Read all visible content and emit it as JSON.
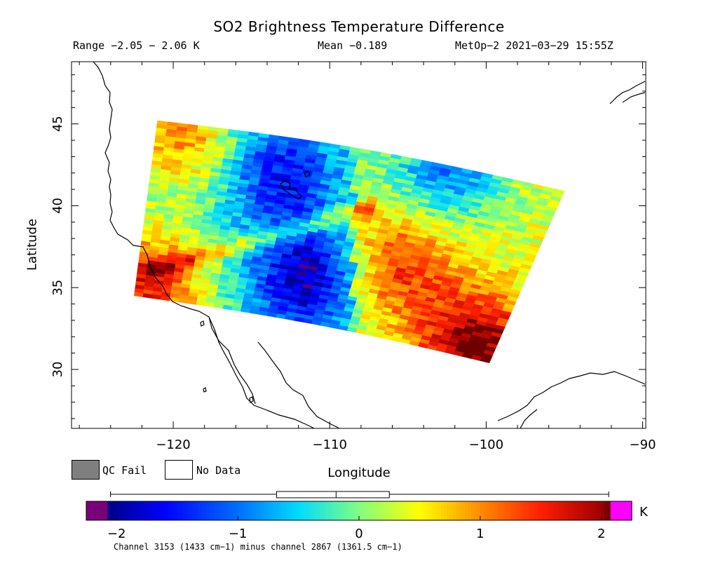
{
  "chart_data": {
    "type": "heatmap",
    "title": "SO2 Brightness Temperature Difference",
    "subtitle_range": "Range −2.05 − 2.06 K",
    "subtitle_mean": "Mean −0.189",
    "subtitle_sat": "MetOp−2 2021−03−29 15:55Z",
    "xlabel": "Longitude",
    "ylabel": "Latitude",
    "xlim": [
      -126.5,
      -89.8
    ],
    "ylim": [
      26.4,
      48.8
    ],
    "x_ticks": [
      -120,
      -110,
      -100,
      -90
    ],
    "x_tick_labels": [
      "−120",
      "−110",
      "−100",
      "−90"
    ],
    "y_ticks": [
      30,
      35,
      40,
      45
    ],
    "y_tick_labels": [
      "30",
      "35",
      "40",
      "45"
    ],
    "swath_corners": {
      "top_left": [
        -121.0,
        45.2
      ],
      "top_right": [
        -95.0,
        40.9
      ],
      "bottom_right": [
        -99.8,
        30.4
      ],
      "bottom_left": [
        -122.5,
        34.5
      ]
    },
    "swath_anomalies": [
      {
        "desc": "positive band",
        "lon": -119.5,
        "lat": 44.3,
        "value": 1.1
      },
      {
        "desc": "positive band",
        "lon": -121.5,
        "lat": 35.2,
        "value": 1.6
      },
      {
        "desc": "positive band",
        "lon": -100.8,
        "lat": 31.3,
        "value": 1.7
      },
      {
        "desc": "positive band",
        "lon": -105.5,
        "lat": 36.3,
        "value": 1.0
      },
      {
        "desc": "negative region",
        "lon": -111.5,
        "lat": 35.5,
        "value": -1.6
      },
      {
        "desc": "negative region",
        "lon": -113.0,
        "lat": 42.0,
        "value": -1.2
      },
      {
        "desc": "negative region",
        "lon": -102.5,
        "lat": 42.3,
        "value": -1.2
      }
    ],
    "colorbar": {
      "min": -2.25,
      "max": 2.25,
      "ticks": [
        -2,
        -1,
        0,
        1,
        2
      ],
      "tick_labels": [
        "−2",
        "−1",
        "0",
        "1",
        "2"
      ],
      "unit": "K",
      "boxplot": {
        "whisker_low": -2.05,
        "q1": -0.68,
        "median": -0.189,
        "q3": 0.25,
        "whisker_high": 2.06
      },
      "colors": [
        "#7a007a",
        "#0000a0",
        "#0000ff",
        "#0078ff",
        "#00e0ff",
        "#80ff80",
        "#ffff00",
        "#ff8000",
        "#ff0000",
        "#a00000",
        "#ff00ff"
      ]
    },
    "footnote": "Channel 3153 (1433 cm−1) minus channel 2867 (1361.5 cm−1)"
  },
  "legend": {
    "qc_fail_label": "QC Fail",
    "qc_fail_color": "#7f7f7f",
    "no_data_label": "No Data",
    "no_data_color": "#ffffff"
  }
}
